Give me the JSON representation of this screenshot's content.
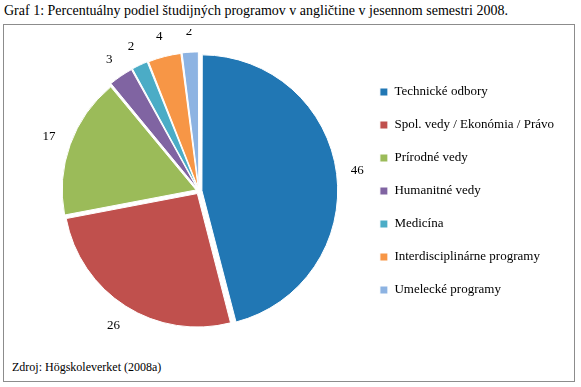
{
  "chart_data": {
    "type": "pie",
    "title": "Graf 1: Percentuálny podiel študijných programov v angličtine v jesennom semestri 2008.",
    "annotations": [
      "Zdroj: Högskoleverket (2008a)"
    ],
    "categories": [
      "Technické odbory",
      "Spol. vedy / Ekonómia / Právo",
      "Prírodné vedy",
      "Humanitné vedy",
      "Medicína",
      "Interdisciplinárne programy",
      "Umelecké programy"
    ],
    "values": [
      46,
      26,
      17,
      3,
      2,
      4,
      2
    ],
    "colors": [
      "#2177b4",
      "#c0504d",
      "#9bbb59",
      "#8064a2",
      "#4bacc6",
      "#f79646",
      "#8db3e2"
    ],
    "legend": "right",
    "data_labels": true
  }
}
